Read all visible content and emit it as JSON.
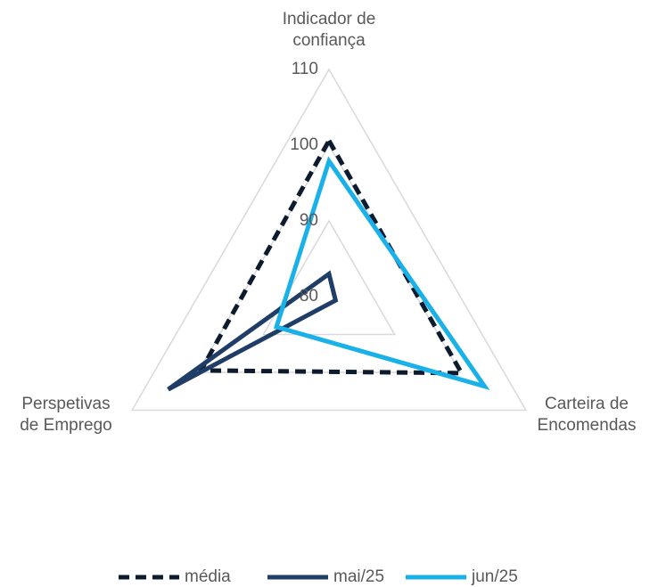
{
  "chart_data": {
    "type": "radar",
    "categories": [
      "Indicador de\nconfiança",
      "Carteira de\nEncomendas",
      "Perspetivas\nde Emprego"
    ],
    "rlim": [
      80,
      110
    ],
    "rticks": [
      80,
      90,
      100,
      110
    ],
    "grid": true,
    "legend": "bottom",
    "series": [
      {
        "name": "média",
        "color": "#0d1b2e",
        "dash": true,
        "values": [
          100.6,
          100.2,
          99.5
        ]
      },
      {
        "name": "mai/25",
        "color": "#1f3d66",
        "dash": false,
        "values": [
          83,
          81,
          104.5
        ]
      },
      {
        "name": "jun/25",
        "color": "#1ab1e8",
        "dash": false,
        "values": [
          97.9,
          103.7,
          88
        ]
      }
    ]
  }
}
